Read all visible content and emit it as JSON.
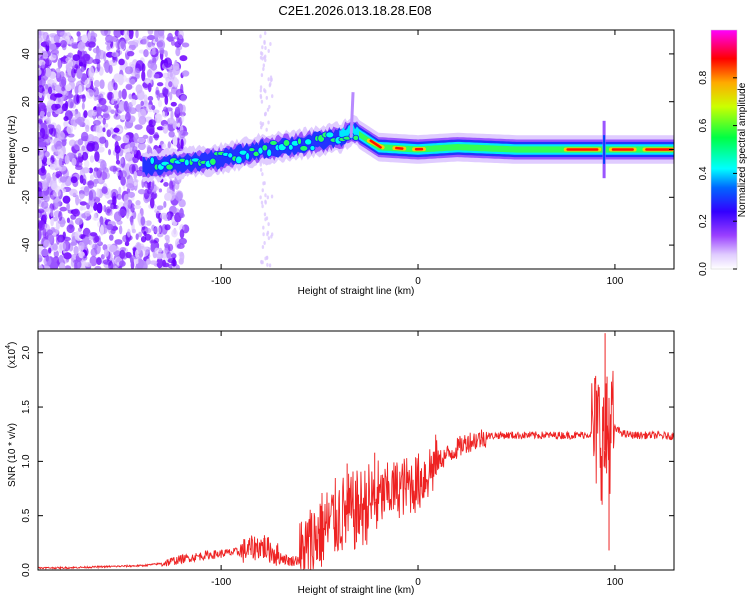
{
  "title": "C2E1.2026.013.18.28.E08",
  "chart_data": [
    {
      "type": "heatmap",
      "name": "spectrogram",
      "xlabel": "Height of straight line (km)",
      "ylabel": "Frequency (Hz)",
      "xlim": [
        -193,
        130
      ],
      "ylim": [
        -50,
        50
      ],
      "x_ticks": [
        -100,
        0,
        100
      ],
      "y_ticks": [
        -40,
        -20,
        0,
        20,
        40
      ],
      "x_tick_labels": [
        "-100",
        "0",
        "100"
      ],
      "y_tick_labels": [
        "-40",
        "-20",
        "0",
        "20",
        "40"
      ],
      "colorbar": {
        "label": "Normalized spectral amplitude",
        "range": [
          0,
          1
        ],
        "ticks": [
          0.0,
          0.2,
          0.4,
          0.6,
          0.8
        ],
        "tick_labels": [
          "0.0",
          "0.2",
          "0.4",
          "0.6",
          "0.8"
        ],
        "colormap": [
          "#ffffff",
          "#c8a0ff",
          "#7f00ff",
          "#0000ff",
          "#00ffff",
          "#00ff00",
          "#ffff00",
          "#ff8000",
          "#ff0000",
          "#ff00ff"
        ]
      },
      "ridge": {
        "description_points_x": [
          -140,
          -120,
          -100,
          -80,
          -60,
          -40,
          -33,
          -20,
          0,
          20,
          50,
          80,
          90,
          95,
          100,
          130
        ],
        "description_points_y": [
          -7,
          -6,
          -4,
          0,
          2,
          5,
          8,
          1,
          0,
          1,
          0,
          0,
          0,
          0,
          0,
          0
        ]
      }
    },
    {
      "type": "line",
      "name": "snr",
      "xlabel": "Height of straight line (km)",
      "ylabel": "SNR (10 * v/v)",
      "scale_label_base": "(x10",
      "scale_label_exp": "4",
      "scale_label_end": ")",
      "xlim": [
        -193,
        130
      ],
      "ylim": [
        0,
        2.2
      ],
      "x_ticks": [
        -100,
        0,
        100
      ],
      "y_ticks": [
        0.0,
        0.5,
        1.0,
        1.5,
        2.0
      ],
      "x_tick_labels": [
        "-100",
        "0",
        "100"
      ],
      "y_tick_labels": [
        "0.0",
        "0.5",
        "1.0",
        "1.5",
        "2.0"
      ],
      "color": "#ee2222",
      "series": [
        {
          "name": "SNR",
          "x": [
            -193,
            -180,
            -160,
            -140,
            -130,
            -120,
            -110,
            -100,
            -90,
            -80,
            -75,
            -70,
            -65,
            -60,
            -55,
            -50,
            -45,
            -40,
            -35,
            -30,
            -25,
            -20,
            -15,
            -10,
            -5,
            0,
            5,
            10,
            15,
            20,
            25,
            30,
            35,
            40,
            50,
            60,
            70,
            80,
            88,
            92,
            95,
            97,
            100,
            105,
            110,
            120,
            130
          ],
          "y": [
            0.02,
            0.02,
            0.03,
            0.04,
            0.06,
            0.1,
            0.13,
            0.15,
            0.17,
            0.22,
            0.18,
            0.12,
            0.08,
            0.1,
            0.22,
            0.35,
            0.42,
            0.5,
            0.52,
            0.55,
            0.62,
            0.65,
            0.72,
            0.75,
            0.78,
            0.8,
            0.9,
            1.0,
            1.06,
            1.12,
            1.18,
            1.2,
            1.23,
            1.24,
            1.24,
            1.24,
            1.24,
            1.24,
            1.25,
            1.3,
            1.1,
            1.3,
            1.3,
            1.25,
            1.24,
            1.24,
            1.23
          ]
        }
      ],
      "spikes": [
        {
          "x": -78,
          "y": 0.32
        },
        {
          "x": -22,
          "y": 1.08
        },
        {
          "x": -36,
          "y": 0.98
        },
        {
          "x": 95,
          "y": 2.18
        },
        {
          "x": 96,
          "y": 1.78
        },
        {
          "x": 97,
          "y": 0.18
        }
      ]
    }
  ]
}
